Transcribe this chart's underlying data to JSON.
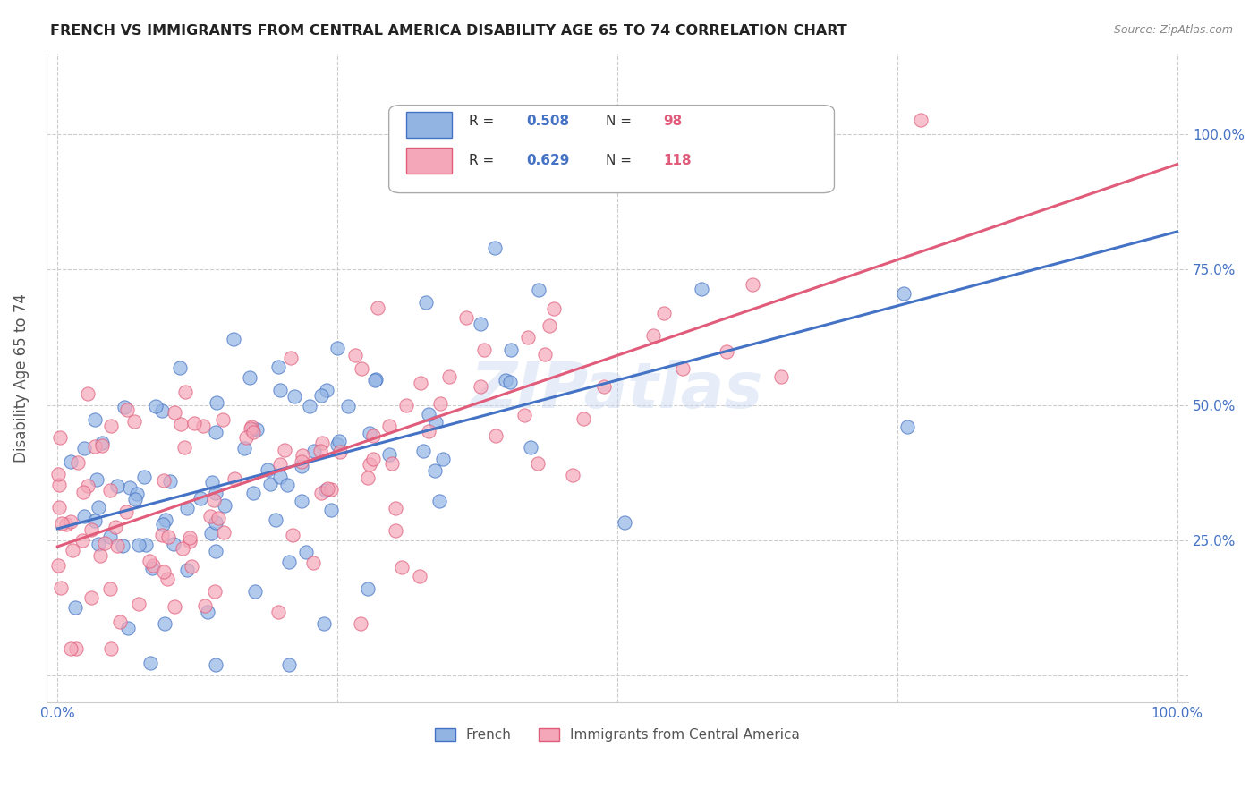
{
  "title": "FRENCH VS IMMIGRANTS FROM CENTRAL AMERICA DISABILITY AGE 65 TO 74 CORRELATION CHART",
  "source": "Source: ZipAtlas.com",
  "ylabel": "Disability Age 65 to 74",
  "xlabel": "",
  "xlim": [
    0,
    1
  ],
  "ylim": [
    -0.05,
    1.15
  ],
  "x_ticks": [
    0,
    0.25,
    0.5,
    0.75,
    1.0
  ],
  "x_tick_labels": [
    "0.0%",
    "",
    "",
    "",
    "100.0%"
  ],
  "y_ticks": [
    0,
    0.25,
    0.5,
    0.75,
    1.0
  ],
  "y_tick_labels": [
    "",
    "25.0%",
    "50.0%",
    "75.0%",
    "100.0%"
  ],
  "french_R": 0.508,
  "french_N": 98,
  "french_color": "#92b4e3",
  "french_line_color": "#4472c4",
  "immigrant_R": 0.629,
  "immigrant_N": 118,
  "immigrant_color": "#f4a7b9",
  "immigrant_line_color": "#e05c7a",
  "legend_label_1": "French",
  "legend_label_2": "Immigrants from Central America",
  "watermark": "ZIPatlas",
  "background_color": "#ffffff",
  "grid_color": "#cccccc",
  "title_color": "#222222",
  "axis_label_color": "#555555",
  "tick_label_color": "#4472c4",
  "right_tick_color": "#4472c4",
  "legend_R_color": "#1f77b4",
  "legend_N_color": "#e05c7a",
  "seed": 42
}
